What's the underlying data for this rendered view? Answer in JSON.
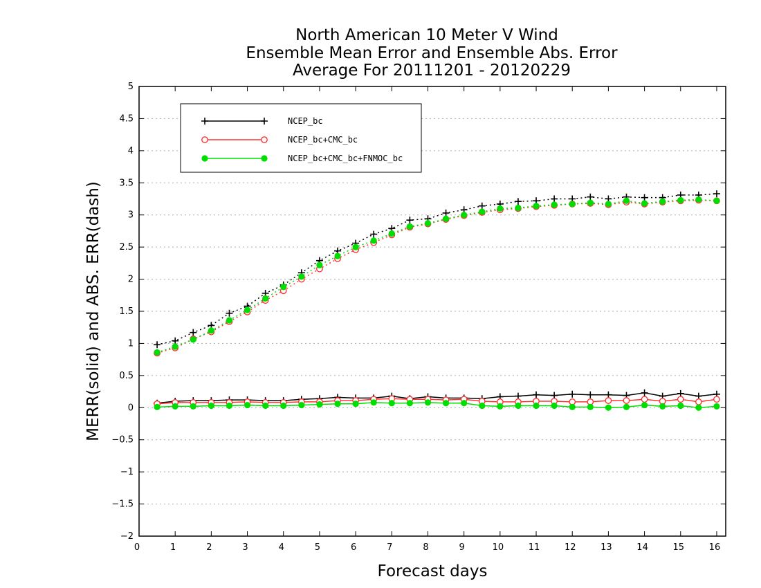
{
  "chart_data": {
    "type": "line",
    "title_lines": [
      "North American 10 Meter V Wind",
      "Ensemble Mean Error and Ensemble Abs. Error",
      "Average For 20111201 - 20120229"
    ],
    "xlabel": "Forecast days",
    "ylabel": "MERR(solid) and ABS. ERR(dash)",
    "xlim": [
      0,
      16.25
    ],
    "ylim": [
      -2,
      5
    ],
    "xticks": [
      0,
      1,
      2,
      3,
      4,
      5,
      6,
      7,
      8,
      9,
      10,
      11,
      12,
      13,
      14,
      15,
      16
    ],
    "xtick_labels": [
      "0",
      "1",
      "2",
      "3",
      "4",
      "5",
      "6",
      "7",
      "8",
      "9",
      "10",
      "11",
      "12",
      "13",
      "14",
      "15",
      "16"
    ],
    "yticks": [
      -2,
      -1.5,
      -1,
      -0.5,
      0,
      0.5,
      1,
      1.5,
      2,
      2.5,
      3,
      3.5,
      4,
      4.5,
      5
    ],
    "ytick_labels": [
      "−2",
      "−1.5",
      "−1",
      "−0.5",
      "0",
      "0.5",
      "1",
      "1.5",
      "2",
      "2.5",
      "3",
      "3.5",
      "4",
      "4.5",
      "5"
    ],
    "grid": "horizontal dotted",
    "legend_position": "top-left",
    "x": [
      0.5,
      1,
      1.5,
      2,
      2.5,
      3,
      3.5,
      4,
      4.5,
      5,
      5.5,
      6,
      6.5,
      7,
      7.5,
      8,
      8.5,
      9,
      9.5,
      10,
      10.5,
      11,
      11.5,
      12,
      12.5,
      13,
      13.5,
      14,
      14.5,
      15,
      15.5,
      16
    ],
    "series": [
      {
        "name": "NCEP_bc",
        "color": "#000000",
        "marker": "plus",
        "merr": [
          0.07,
          0.1,
          0.11,
          0.11,
          0.12,
          0.12,
          0.11,
          0.11,
          0.13,
          0.14,
          0.16,
          0.15,
          0.15,
          0.18,
          0.14,
          0.17,
          0.15,
          0.15,
          0.14,
          0.17,
          0.18,
          0.2,
          0.19,
          0.21,
          0.2,
          0.2,
          0.19,
          0.23,
          0.18,
          0.22,
          0.18,
          0.21
        ],
        "abs_err": [
          0.98,
          1.04,
          1.17,
          1.28,
          1.47,
          1.58,
          1.78,
          1.91,
          2.1,
          2.29,
          2.44,
          2.56,
          2.7,
          2.79,
          2.92,
          2.94,
          3.03,
          3.08,
          3.14,
          3.17,
          3.21,
          3.22,
          3.25,
          3.25,
          3.28,
          3.25,
          3.28,
          3.27,
          3.27,
          3.31,
          3.31,
          3.33
        ]
      },
      {
        "name": "NCEP_bc+CMC_bc",
        "color": "#ff3333",
        "marker": "open-circle",
        "merr": [
          0.06,
          0.08,
          0.08,
          0.08,
          0.08,
          0.09,
          0.08,
          0.08,
          0.09,
          0.09,
          0.11,
          0.11,
          0.13,
          0.14,
          0.13,
          0.13,
          0.12,
          0.13,
          0.1,
          0.09,
          0.09,
          0.1,
          0.1,
          0.09,
          0.09,
          0.11,
          0.11,
          0.13,
          0.1,
          0.13,
          0.09,
          0.13
        ],
        "abs_err": [
          0.85,
          0.93,
          1.07,
          1.18,
          1.34,
          1.49,
          1.67,
          1.82,
          2.0,
          2.16,
          2.32,
          2.46,
          2.57,
          2.69,
          2.81,
          2.86,
          2.93,
          2.99,
          3.04,
          3.08,
          3.1,
          3.13,
          3.15,
          3.17,
          3.18,
          3.16,
          3.2,
          3.17,
          3.2,
          3.22,
          3.23,
          3.22
        ]
      },
      {
        "name": "NCEP_bc+CMC_bc+FNMOC_bc",
        "color": "#00dd00",
        "marker": "filled-circle",
        "merr": [
          0.01,
          0.02,
          0.02,
          0.03,
          0.03,
          0.04,
          0.03,
          0.03,
          0.04,
          0.05,
          0.06,
          0.06,
          0.08,
          0.07,
          0.07,
          0.08,
          0.07,
          0.07,
          0.03,
          0.02,
          0.03,
          0.03,
          0.03,
          0.01,
          0.01,
          0.0,
          0.01,
          0.04,
          0.02,
          0.03,
          0.0,
          0.02
        ],
        "abs_err": [
          0.86,
          0.95,
          1.06,
          1.2,
          1.36,
          1.52,
          1.7,
          1.88,
          2.04,
          2.22,
          2.36,
          2.5,
          2.6,
          2.71,
          2.82,
          2.87,
          2.94,
          3.0,
          3.05,
          3.1,
          3.11,
          3.14,
          3.16,
          3.17,
          3.19,
          3.17,
          3.22,
          3.18,
          3.21,
          3.23,
          3.24,
          3.22
        ]
      }
    ]
  }
}
